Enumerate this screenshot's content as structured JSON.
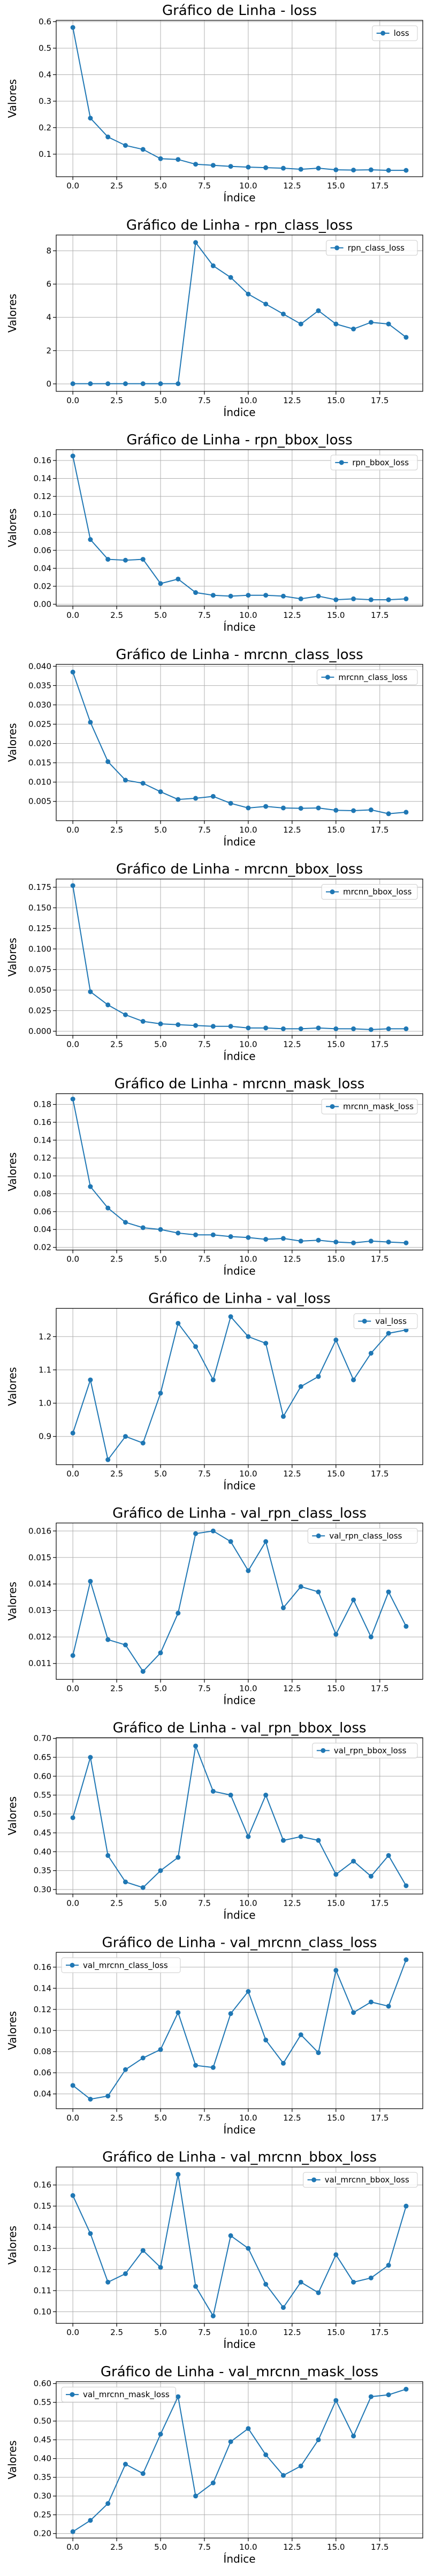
{
  "theme": {
    "line_color": "#1f77b4",
    "grid_color": "#b0b0b0"
  },
  "chart_data": [
    {
      "type": "line",
      "title": "Gráfico de Linha - loss",
      "xlabel": "Índice",
      "ylabel": "Valores",
      "grid": true,
      "legend_position": "top-right",
      "xlim": [
        -0.95,
        19.95
      ],
      "ylim": [
        0.015,
        0.605
      ],
      "xticks": [
        "0.0",
        "2.5",
        "5.0",
        "7.5",
        "10.0",
        "12.5",
        "15.0",
        "17.5"
      ],
      "yticks": [
        "0.1",
        "0.2",
        "0.3",
        "0.4",
        "0.5",
        "0.6"
      ],
      "series": [
        {
          "name": "loss",
          "marker": "circle",
          "color": "#1f77b4",
          "x": [
            0,
            1,
            2,
            3,
            4,
            5,
            6,
            7,
            8,
            9,
            10,
            11,
            12,
            13,
            14,
            15,
            16,
            17,
            18,
            19
          ],
          "y": [
            0.578,
            0.236,
            0.165,
            0.133,
            0.118,
            0.083,
            0.08,
            0.062,
            0.058,
            0.054,
            0.051,
            0.049,
            0.047,
            0.043,
            0.047,
            0.041,
            0.04,
            0.041,
            0.039,
            0.039
          ]
        }
      ]
    },
    {
      "type": "line",
      "title": "Gráfico de Linha - rpn_class_loss",
      "xlabel": "Índice",
      "ylabel": "Valores",
      "grid": true,
      "legend_position": "top-right",
      "xlim": [
        -0.95,
        19.95
      ],
      "ylim": [
        -0.45,
        8.95
      ],
      "xticks": [
        "0.0",
        "2.5",
        "5.0",
        "7.5",
        "10.0",
        "12.5",
        "15.0",
        "17.5"
      ],
      "yticks": [
        "0",
        "2",
        "4",
        "6",
        "8"
      ],
      "series": [
        {
          "name": "rpn_class_loss",
          "marker": "circle",
          "color": "#1f77b4",
          "x": [
            0,
            1,
            2,
            3,
            4,
            5,
            6,
            7,
            8,
            9,
            10,
            11,
            12,
            13,
            14,
            15,
            16,
            17,
            18,
            19
          ],
          "y": [
            0.01,
            0.01,
            0.01,
            0.01,
            0.01,
            0.01,
            0.01,
            8.5,
            7.1,
            6.4,
            5.4,
            4.8,
            4.2,
            3.6,
            4.4,
            3.6,
            3.3,
            3.7,
            3.6,
            2.8
          ]
        }
      ]
    },
    {
      "type": "line",
      "title": "Gráfico de Linha - rpn_bbox_loss",
      "xlabel": "Índice",
      "ylabel": "Valores",
      "grid": true,
      "legend_position": "top-right",
      "xlim": [
        -0.95,
        19.95
      ],
      "ylim": [
        -0.002,
        0.172
      ],
      "xticks": [
        "0.0",
        "2.5",
        "5.0",
        "7.5",
        "10.0",
        "12.5",
        "15.0",
        "17.5"
      ],
      "yticks": [
        "0.00",
        "0.02",
        "0.04",
        "0.06",
        "0.08",
        "0.10",
        "0.12",
        "0.14",
        "0.16"
      ],
      "series": [
        {
          "name": "rpn_bbox_loss",
          "marker": "circle",
          "color": "#1f77b4",
          "x": [
            0,
            1,
            2,
            3,
            4,
            5,
            6,
            7,
            8,
            9,
            10,
            11,
            12,
            13,
            14,
            15,
            16,
            17,
            18,
            19
          ],
          "y": [
            0.165,
            0.072,
            0.05,
            0.049,
            0.05,
            0.023,
            0.028,
            0.013,
            0.01,
            0.009,
            0.01,
            0.01,
            0.009,
            0.006,
            0.009,
            0.005,
            0.006,
            0.005,
            0.005,
            0.006
          ]
        }
      ]
    },
    {
      "type": "line",
      "title": "Gráfico de Linha - mrcnn_class_loss",
      "xlabel": "Índice",
      "ylabel": "Valores",
      "grid": true,
      "legend_position": "top-right",
      "xlim": [
        -0.95,
        19.95
      ],
      "ylim": [
        0.0,
        0.0405
      ],
      "xticks": [
        "0.0",
        "2.5",
        "5.0",
        "7.5",
        "10.0",
        "12.5",
        "15.0",
        "17.5"
      ],
      "yticks": [
        "0.005",
        "0.010",
        "0.015",
        "0.020",
        "0.025",
        "0.030",
        "0.035",
        "0.040"
      ],
      "series": [
        {
          "name": "mrcnn_class_loss",
          "marker": "circle",
          "color": "#1f77b4",
          "x": [
            0,
            1,
            2,
            3,
            4,
            5,
            6,
            7,
            8,
            9,
            10,
            11,
            12,
            13,
            14,
            15,
            16,
            17,
            18,
            19
          ],
          "y": [
            0.0385,
            0.0255,
            0.0153,
            0.0105,
            0.0097,
            0.0075,
            0.0055,
            0.0058,
            0.0063,
            0.0045,
            0.0033,
            0.0037,
            0.0033,
            0.0032,
            0.0033,
            0.0027,
            0.0026,
            0.0028,
            0.0018,
            0.0022
          ]
        }
      ]
    },
    {
      "type": "line",
      "title": "Gráfico de Linha - mrcnn_bbox_loss",
      "xlabel": "Índice",
      "ylabel": "Valores",
      "grid": true,
      "legend_position": "top-right",
      "xlim": [
        -0.95,
        19.95
      ],
      "ylim": [
        -0.005,
        0.185
      ],
      "xticks": [
        "0.0",
        "2.5",
        "5.0",
        "7.5",
        "10.0",
        "12.5",
        "15.0",
        "17.5"
      ],
      "yticks": [
        "0.000",
        "0.025",
        "0.050",
        "0.075",
        "0.100",
        "0.125",
        "0.150",
        "0.175"
      ],
      "series": [
        {
          "name": "mrcnn_bbox_loss",
          "marker": "circle",
          "color": "#1f77b4",
          "x": [
            0,
            1,
            2,
            3,
            4,
            5,
            6,
            7,
            8,
            9,
            10,
            11,
            12,
            13,
            14,
            15,
            16,
            17,
            18,
            19
          ],
          "y": [
            0.177,
            0.048,
            0.032,
            0.02,
            0.012,
            0.009,
            0.008,
            0.007,
            0.006,
            0.006,
            0.004,
            0.004,
            0.003,
            0.003,
            0.004,
            0.003,
            0.003,
            0.002,
            0.003,
            0.003
          ]
        }
      ]
    },
    {
      "type": "line",
      "title": "Gráfico de Linha - mrcnn_mask_loss",
      "xlabel": "Índice",
      "ylabel": "Valores",
      "grid": true,
      "legend_position": "top-right",
      "xlim": [
        -0.95,
        19.95
      ],
      "ylim": [
        0.017,
        0.192
      ],
      "xticks": [
        "0.0",
        "2.5",
        "5.0",
        "7.5",
        "10.0",
        "12.5",
        "15.0",
        "17.5"
      ],
      "yticks": [
        "0.02",
        "0.04",
        "0.06",
        "0.08",
        "0.10",
        "0.12",
        "0.14",
        "0.16",
        "0.18"
      ],
      "series": [
        {
          "name": "mrcnn_mask_loss",
          "marker": "circle",
          "color": "#1f77b4",
          "x": [
            0,
            1,
            2,
            3,
            4,
            5,
            6,
            7,
            8,
            9,
            10,
            11,
            12,
            13,
            14,
            15,
            16,
            17,
            18,
            19
          ],
          "y": [
            0.186,
            0.088,
            0.064,
            0.048,
            0.042,
            0.04,
            0.036,
            0.034,
            0.034,
            0.032,
            0.031,
            0.029,
            0.03,
            0.027,
            0.028,
            0.026,
            0.025,
            0.027,
            0.026,
            0.025
          ]
        }
      ]
    },
    {
      "type": "line",
      "title": "Gráfico de Linha - val_loss",
      "xlabel": "Índice",
      "ylabel": "Valores",
      "grid": true,
      "legend_position": "top-right",
      "xlim": [
        -0.95,
        19.95
      ],
      "ylim": [
        0.815,
        1.285
      ],
      "xticks": [
        "0.0",
        "2.5",
        "5.0",
        "7.5",
        "10.0",
        "12.5",
        "15.0",
        "17.5"
      ],
      "yticks": [
        "0.9",
        "1.0",
        "1.1",
        "1.2"
      ],
      "series": [
        {
          "name": "val_loss",
          "marker": "circle",
          "color": "#1f77b4",
          "x": [
            0,
            1,
            2,
            3,
            4,
            5,
            6,
            7,
            8,
            9,
            10,
            11,
            12,
            13,
            14,
            15,
            16,
            17,
            18,
            19
          ],
          "y": [
            0.91,
            1.07,
            0.83,
            0.9,
            0.88,
            1.03,
            1.24,
            1.17,
            1.07,
            1.26,
            1.2,
            1.18,
            0.96,
            1.05,
            1.08,
            1.19,
            1.07,
            1.15,
            1.21,
            1.22
          ]
        }
      ]
    },
    {
      "type": "line",
      "title": "Gráfico de Linha - val_rpn_class_loss",
      "xlabel": "Índice",
      "ylabel": "Valores",
      "grid": true,
      "legend_position": "top-right",
      "xlim": [
        -0.95,
        19.95
      ],
      "ylim": [
        0.0104,
        0.0163
      ],
      "xticks": [
        "0.0",
        "2.5",
        "5.0",
        "7.5",
        "10.0",
        "12.5",
        "15.0",
        "17.5"
      ],
      "yticks": [
        "0.011",
        "0.012",
        "0.013",
        "0.014",
        "0.015",
        "0.016"
      ],
      "series": [
        {
          "name": "val_rpn_class_loss",
          "marker": "circle",
          "color": "#1f77b4",
          "x": [
            0,
            1,
            2,
            3,
            4,
            5,
            6,
            7,
            8,
            9,
            10,
            11,
            12,
            13,
            14,
            15,
            16,
            17,
            18,
            19
          ],
          "y": [
            0.0113,
            0.0141,
            0.0119,
            0.0117,
            0.0107,
            0.0114,
            0.0129,
            0.0159,
            0.016,
            0.0156,
            0.0145,
            0.0156,
            0.0131,
            0.0139,
            0.0137,
            0.0121,
            0.0134,
            0.012,
            0.0137,
            0.0124
          ]
        }
      ]
    },
    {
      "type": "line",
      "title": "Gráfico de Linha - val_rpn_bbox_loss",
      "xlabel": "Índice",
      "ylabel": "Valores",
      "grid": true,
      "legend_position": "top-right",
      "xlim": [
        -0.95,
        19.95
      ],
      "ylim": [
        0.288,
        0.702
      ],
      "xticks": [
        "0.0",
        "2.5",
        "5.0",
        "7.5",
        "10.0",
        "12.5",
        "15.0",
        "17.5"
      ],
      "yticks": [
        "0.30",
        "0.35",
        "0.40",
        "0.45",
        "0.50",
        "0.55",
        "0.60",
        "0.65",
        "0.70"
      ],
      "series": [
        {
          "name": "val_rpn_bbox_loss",
          "marker": "circle",
          "color": "#1f77b4",
          "x": [
            0,
            1,
            2,
            3,
            4,
            5,
            6,
            7,
            8,
            9,
            10,
            11,
            12,
            13,
            14,
            15,
            16,
            17,
            18,
            19
          ],
          "y": [
            0.49,
            0.65,
            0.39,
            0.32,
            0.305,
            0.35,
            0.385,
            0.68,
            0.56,
            0.55,
            0.44,
            0.55,
            0.43,
            0.44,
            0.43,
            0.34,
            0.375,
            0.335,
            0.39,
            0.31
          ]
        }
      ]
    },
    {
      "type": "line",
      "title": "Gráfico de Linha - val_mrcnn_class_loss",
      "xlabel": "Índice",
      "ylabel": "Valores",
      "grid": true,
      "legend_position": "top-left",
      "xlim": [
        -0.95,
        19.95
      ],
      "ylim": [
        0.026,
        0.174
      ],
      "xticks": [
        "0.0",
        "2.5",
        "5.0",
        "7.5",
        "10.0",
        "12.5",
        "15.0",
        "17.5"
      ],
      "yticks": [
        "0.04",
        "0.06",
        "0.08",
        "0.10",
        "0.12",
        "0.14",
        "0.16"
      ],
      "series": [
        {
          "name": "val_mrcnn_class_loss",
          "marker": "circle",
          "color": "#1f77b4",
          "x": [
            0,
            1,
            2,
            3,
            4,
            5,
            6,
            7,
            8,
            9,
            10,
            11,
            12,
            13,
            14,
            15,
            16,
            17,
            18,
            19
          ],
          "y": [
            0.048,
            0.035,
            0.038,
            0.063,
            0.074,
            0.082,
            0.117,
            0.067,
            0.065,
            0.116,
            0.137,
            0.091,
            0.069,
            0.096,
            0.079,
            0.157,
            0.117,
            0.127,
            0.123,
            0.167
          ]
        }
      ]
    },
    {
      "type": "line",
      "title": "Gráfico de Linha - val_mrcnn_bbox_loss",
      "xlabel": "Índice",
      "ylabel": "Valores",
      "grid": true,
      "legend_position": "top-right",
      "xlim": [
        -0.95,
        19.95
      ],
      "ylim": [
        0.0945,
        0.1685
      ],
      "xticks": [
        "0.0",
        "2.5",
        "5.0",
        "7.5",
        "10.0",
        "12.5",
        "15.0",
        "17.5"
      ],
      "yticks": [
        "0.10",
        "0.11",
        "0.12",
        "0.13",
        "0.14",
        "0.15",
        "0.16"
      ],
      "series": [
        {
          "name": "val_mrcnn_bbox_loss",
          "marker": "circle",
          "color": "#1f77b4",
          "x": [
            0,
            1,
            2,
            3,
            4,
            5,
            6,
            7,
            8,
            9,
            10,
            11,
            12,
            13,
            14,
            15,
            16,
            17,
            18,
            19
          ],
          "y": [
            0.155,
            0.137,
            0.114,
            0.118,
            0.129,
            0.121,
            0.165,
            0.112,
            0.098,
            0.136,
            0.13,
            0.113,
            0.102,
            0.114,
            0.109,
            0.127,
            0.114,
            0.116,
            0.122,
            0.15
          ]
        }
      ]
    },
    {
      "type": "line",
      "title": "Gráfico de Linha - val_mrcnn_mask_loss",
      "xlabel": "Índice",
      "ylabel": "Valores",
      "grid": true,
      "legend_position": "top-left",
      "xlim": [
        -0.95,
        19.95
      ],
      "ylim": [
        0.188,
        0.605
      ],
      "xticks": [
        "0.0",
        "2.5",
        "5.0",
        "7.5",
        "10.0",
        "12.5",
        "15.0",
        "17.5"
      ],
      "yticks": [
        "0.20",
        "0.25",
        "0.30",
        "0.35",
        "0.40",
        "0.45",
        "0.50",
        "0.55",
        "0.60"
      ],
      "series": [
        {
          "name": "val_mrcnn_mask_loss",
          "marker": "circle",
          "color": "#1f77b4",
          "x": [
            0,
            1,
            2,
            3,
            4,
            5,
            6,
            7,
            8,
            9,
            10,
            11,
            12,
            13,
            14,
            15,
            16,
            17,
            18,
            19
          ],
          "y": [
            0.205,
            0.235,
            0.28,
            0.385,
            0.36,
            0.465,
            0.565,
            0.3,
            0.335,
            0.445,
            0.48,
            0.41,
            0.355,
            0.38,
            0.45,
            0.555,
            0.46,
            0.565,
            0.57,
            0.585
          ]
        }
      ]
    }
  ]
}
